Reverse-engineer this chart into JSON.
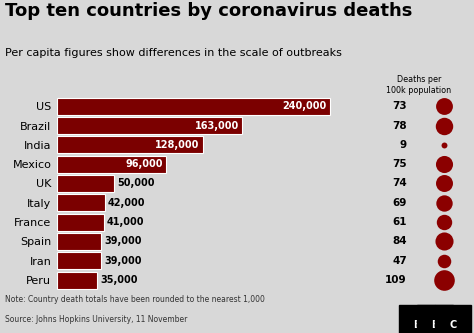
{
  "title": "Top ten countries by coronavirus deaths",
  "subtitle": "Per capita figures show differences in the scale of outbreaks",
  "countries": [
    "US",
    "Brazil",
    "India",
    "Mexico",
    "UK",
    "Italy",
    "France",
    "Spain",
    "Iran",
    "Peru"
  ],
  "deaths": [
    240000,
    163000,
    128000,
    96000,
    50000,
    42000,
    41000,
    39000,
    39000,
    35000
  ],
  "death_labels": [
    "240,000",
    "163,000",
    "128,000",
    "96,000",
    "50,000",
    "42,000",
    "41,000",
    "39,000",
    "39,000",
    "35,000"
  ],
  "per_capita": [
    73,
    78,
    9,
    75,
    74,
    69,
    61,
    84,
    47,
    109
  ],
  "bar_color": "#7B0000",
  "dot_color": "#8B0000",
  "bg_color": "#d8d8d8",
  "chart_bg": "#d8d8d8",
  "text_color": "#000000",
  "note": "Note: Country death totals have been rounded to the nearest 1,000",
  "source": "Source: Johns Hopkins University, 11 November",
  "col_header": "Deaths per\n100k population",
  "xlim": [
    0,
    265000
  ],
  "title_fontsize": 13,
  "subtitle_fontsize": 8,
  "bar_label_fontsize": 7,
  "tick_fontsize": 8
}
